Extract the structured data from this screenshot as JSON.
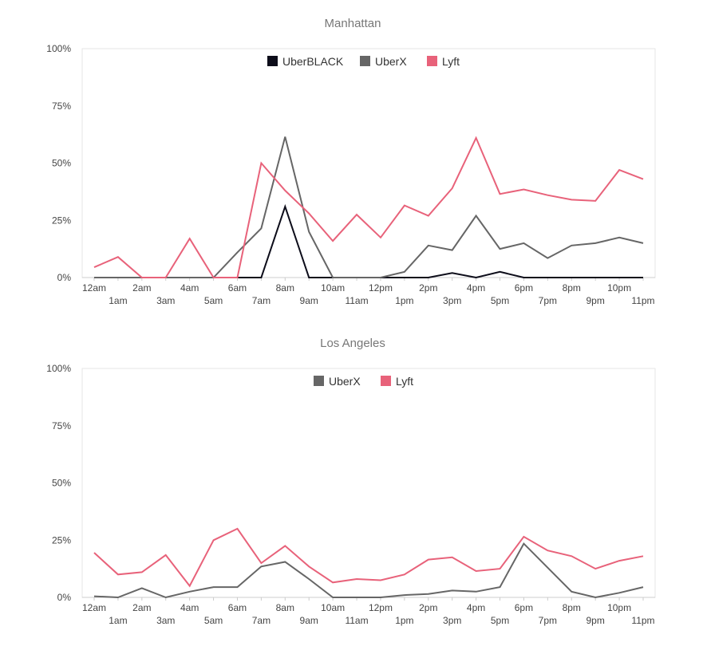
{
  "colors": {
    "UberBLACK": "#0d0d1a",
    "UberX": "#666666",
    "Lyft": "#e8627a"
  },
  "chart_data": [
    {
      "type": "line",
      "title": "Manhattan",
      "ylim": [
        0,
        100
      ],
      "yticks": [
        "0%",
        "25%",
        "50%",
        "75%",
        "100%"
      ],
      "categories": [
        "12am",
        "1am",
        "2am",
        "3am",
        "4am",
        "5am",
        "6am",
        "7am",
        "8am",
        "9am",
        "10am",
        "11am",
        "12pm",
        "1pm",
        "2pm",
        "3pm",
        "4pm",
        "5pm",
        "6pm",
        "7pm",
        "8pm",
        "9pm",
        "10pm",
        "11pm"
      ],
      "legend": [
        "UberBLACK",
        "UberX",
        "Lyft"
      ],
      "series": [
        {
          "name": "UberBLACK",
          "values": [
            0,
            0,
            0,
            0,
            0,
            0,
            0,
            0,
            31,
            0,
            0,
            0,
            0,
            0,
            0,
            2,
            0,
            2.5,
            0,
            0,
            0,
            0,
            0,
            0
          ]
        },
        {
          "name": "UberX",
          "values": [
            0,
            0,
            0,
            0,
            0,
            0,
            11,
            21.5,
            61.5,
            20,
            0,
            0,
            0,
            2.5,
            14,
            12,
            27,
            12.5,
            15,
            8.5,
            14,
            15,
            17.5,
            15
          ]
        },
        {
          "name": "Lyft",
          "values": [
            4.5,
            9,
            0,
            0,
            17,
            0,
            0,
            50,
            38,
            28,
            16,
            27.5,
            17.5,
            31.5,
            27,
            39,
            61,
            36.5,
            38.5,
            36,
            34,
            33.5,
            47,
            43
          ]
        }
      ]
    },
    {
      "type": "line",
      "title": "Los Angeles",
      "ylim": [
        0,
        100
      ],
      "yticks": [
        "0%",
        "25%",
        "50%",
        "75%",
        "100%"
      ],
      "categories": [
        "12am",
        "1am",
        "2am",
        "3am",
        "4am",
        "5am",
        "6am",
        "7am",
        "8am",
        "9am",
        "10am",
        "11am",
        "12pm",
        "1pm",
        "2pm",
        "3pm",
        "4pm",
        "5pm",
        "6pm",
        "7pm",
        "8pm",
        "9pm",
        "10pm",
        "11pm"
      ],
      "legend": [
        "UberX",
        "Lyft"
      ],
      "series": [
        {
          "name": "UberX",
          "values": [
            0.5,
            0,
            4,
            0,
            2.5,
            4.5,
            4.5,
            13.5,
            15.5,
            8,
            0,
            0,
            0,
            1,
            1.5,
            3,
            2.5,
            4.5,
            23.5,
            13,
            2.5,
            0,
            2,
            4.5
          ]
        },
        {
          "name": "Lyft",
          "values": [
            19.5,
            10,
            11,
            18.5,
            5,
            25,
            30,
            15,
            22.5,
            13.5,
            6.5,
            8,
            7.5,
            10,
            16.5,
            17.5,
            11.5,
            12.5,
            26.5,
            20.5,
            18,
            12.5,
            16,
            18
          ]
        }
      ]
    }
  ]
}
